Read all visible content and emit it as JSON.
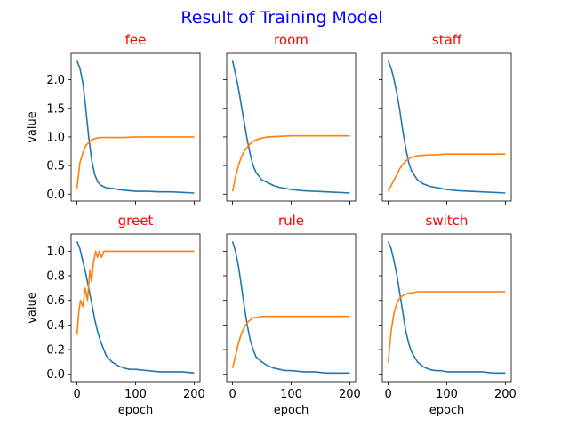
{
  "chart_data": {
    "type": "line",
    "suptitle": "Result of Training Model",
    "xlabel": "epoch",
    "ylabel": "value",
    "xlim": [
      -10,
      210
    ],
    "xticks": [
      0,
      100,
      200
    ],
    "grid": false,
    "colors": {
      "title": "#0000ff",
      "subplot_title": "#ff0000",
      "series_blue": "#1f77b4",
      "series_orange": "#ff7f0e"
    },
    "rows": [
      {
        "ylim": [
          -0.12,
          2.46
        ],
        "yticks": [
          0.0,
          0.5,
          1.0,
          1.5,
          2.0
        ],
        "ytick_labels": [
          "0.0",
          "0.5",
          "1.0",
          "1.5",
          "2.0"
        ],
        "panels": [
          {
            "title": "fee",
            "series": [
              {
                "color": "#1f77b4",
                "x": [
                  0,
                  5,
                  10,
                  15,
                  20,
                  25,
                  30,
                  35,
                  40,
                  50,
                  60,
                  70,
                  80,
                  90,
                  100,
                  120,
                  140,
                  160,
                  180,
                  200
                ],
                "y": [
                  2.33,
                  2.2,
                  1.95,
                  1.5,
                  1.0,
                  0.6,
                  0.35,
                  0.22,
                  0.16,
                  0.11,
                  0.1,
                  0.08,
                  0.07,
                  0.06,
                  0.05,
                  0.05,
                  0.04,
                  0.04,
                  0.03,
                  0.02
                ]
              },
              {
                "color": "#ff7f0e",
                "x": [
                  0,
                  5,
                  10,
                  15,
                  20,
                  25,
                  30,
                  35,
                  40,
                  50,
                  60,
                  80,
                  100,
                  120,
                  140,
                  160,
                  180,
                  200
                ],
                "y": [
                  0.1,
                  0.55,
                  0.72,
                  0.85,
                  0.9,
                  0.95,
                  0.97,
                  0.98,
                  0.99,
                  0.99,
                  0.99,
                  0.99,
                  1.0,
                  1.0,
                  1.0,
                  1.0,
                  1.0,
                  1.0
                ]
              }
            ]
          },
          {
            "title": "room",
            "series": [
              {
                "color": "#1f77b4",
                "x": [
                  0,
                  5,
                  10,
                  15,
                  20,
                  25,
                  30,
                  35,
                  40,
                  50,
                  60,
                  70,
                  80,
                  90,
                  100,
                  120,
                  140,
                  160,
                  180,
                  200
                ],
                "y": [
                  2.33,
                  2.1,
                  1.85,
                  1.55,
                  1.25,
                  0.95,
                  0.7,
                  0.5,
                  0.38,
                  0.25,
                  0.2,
                  0.15,
                  0.12,
                  0.1,
                  0.08,
                  0.06,
                  0.05,
                  0.04,
                  0.03,
                  0.02
                ]
              },
              {
                "color": "#ff7f0e",
                "x": [
                  0,
                  5,
                  10,
                  15,
                  20,
                  25,
                  30,
                  35,
                  40,
                  50,
                  60,
                  80,
                  100,
                  120,
                  140,
                  160,
                  180,
                  200
                ],
                "y": [
                  0.05,
                  0.3,
                  0.5,
                  0.65,
                  0.75,
                  0.82,
                  0.88,
                  0.92,
                  0.95,
                  0.98,
                  1.0,
                  1.01,
                  1.02,
                  1.02,
                  1.02,
                  1.02,
                  1.02,
                  1.02
                ]
              }
            ]
          },
          {
            "title": "staff",
            "series": [
              {
                "color": "#1f77b4",
                "x": [
                  0,
                  5,
                  10,
                  15,
                  20,
                  25,
                  30,
                  35,
                  40,
                  50,
                  60,
                  70,
                  80,
                  90,
                  100,
                  120,
                  140,
                  160,
                  180,
                  200
                ],
                "y": [
                  2.33,
                  2.2,
                  2.0,
                  1.75,
                  1.45,
                  1.1,
                  0.8,
                  0.55,
                  0.4,
                  0.25,
                  0.18,
                  0.14,
                  0.12,
                  0.1,
                  0.08,
                  0.06,
                  0.05,
                  0.04,
                  0.03,
                  0.02
                ]
              },
              {
                "color": "#ff7f0e",
                "x": [
                  0,
                  5,
                  10,
                  15,
                  20,
                  25,
                  30,
                  35,
                  40,
                  50,
                  60,
                  80,
                  100,
                  120,
                  140,
                  160,
                  180,
                  200
                ],
                "y": [
                  0.05,
                  0.15,
                  0.25,
                  0.35,
                  0.45,
                  0.52,
                  0.58,
                  0.62,
                  0.65,
                  0.67,
                  0.68,
                  0.69,
                  0.7,
                  0.7,
                  0.7,
                  0.7,
                  0.7,
                  0.7
                ]
              }
            ]
          }
        ]
      },
      {
        "ylim": [
          -0.06,
          1.14
        ],
        "yticks": [
          0.0,
          0.2,
          0.4,
          0.6,
          0.8,
          1.0
        ],
        "ytick_labels": [
          "0.0",
          "0.2",
          "0.4",
          "0.6",
          "0.8",
          "1.0"
        ],
        "panels": [
          {
            "title": "greet",
            "series": [
              {
                "color": "#1f77b4",
                "x": [
                  0,
                  5,
                  10,
                  15,
                  20,
                  25,
                  30,
                  35,
                  40,
                  50,
                  60,
                  70,
                  80,
                  90,
                  100,
                  120,
                  140,
                  160,
                  180,
                  200
                ],
                "y": [
                  1.08,
                  1.02,
                  0.92,
                  0.82,
                  0.7,
                  0.58,
                  0.45,
                  0.35,
                  0.27,
                  0.15,
                  0.1,
                  0.07,
                  0.05,
                  0.04,
                  0.04,
                  0.03,
                  0.02,
                  0.02,
                  0.02,
                  0.01
                ]
              },
              {
                "color": "#ff7f0e",
                "x": [
                  0,
                  3,
                  6,
                  10,
                  14,
                  18,
                  22,
                  25,
                  28,
                  32,
                  35,
                  38,
                  42,
                  46,
                  50,
                  60,
                  80,
                  100,
                  120,
                  140,
                  160,
                  180,
                  200
                ],
                "y": [
                  0.32,
                  0.5,
                  0.6,
                  0.55,
                  0.7,
                  0.6,
                  0.85,
                  0.75,
                  0.9,
                  1.0,
                  0.95,
                  1.0,
                  0.95,
                  1.0,
                  1.0,
                  1.0,
                  1.0,
                  1.0,
                  1.0,
                  1.0,
                  1.0,
                  1.0,
                  1.0
                ]
              }
            ]
          },
          {
            "title": "rule",
            "series": [
              {
                "color": "#1f77b4",
                "x": [
                  0,
                  5,
                  10,
                  15,
                  20,
                  25,
                  30,
                  35,
                  40,
                  50,
                  60,
                  70,
                  80,
                  90,
                  100,
                  120,
                  140,
                  160,
                  180,
                  200
                ],
                "y": [
                  1.08,
                  1.0,
                  0.88,
                  0.72,
                  0.55,
                  0.4,
                  0.28,
                  0.2,
                  0.14,
                  0.1,
                  0.07,
                  0.05,
                  0.04,
                  0.03,
                  0.03,
                  0.02,
                  0.02,
                  0.01,
                  0.01,
                  0.01
                ]
              },
              {
                "color": "#ff7f0e",
                "x": [
                  0,
                  5,
                  10,
                  15,
                  20,
                  25,
                  30,
                  35,
                  40,
                  50,
                  60,
                  80,
                  100,
                  120,
                  140,
                  160,
                  180,
                  200
                ],
                "y": [
                  0.05,
                  0.15,
                  0.25,
                  0.33,
                  0.38,
                  0.42,
                  0.44,
                  0.46,
                  0.46,
                  0.47,
                  0.47,
                  0.47,
                  0.47,
                  0.47,
                  0.47,
                  0.47,
                  0.47,
                  0.47
                ]
              }
            ]
          },
          {
            "title": "switch",
            "series": [
              {
                "color": "#1f77b4",
                "x": [
                  0,
                  5,
                  10,
                  15,
                  20,
                  25,
                  30,
                  35,
                  40,
                  50,
                  60,
                  70,
                  80,
                  90,
                  100,
                  120,
                  140,
                  160,
                  180,
                  200
                ],
                "y": [
                  1.08,
                  1.02,
                  0.92,
                  0.8,
                  0.65,
                  0.5,
                  0.35,
                  0.25,
                  0.18,
                  0.1,
                  0.06,
                  0.04,
                  0.03,
                  0.03,
                  0.02,
                  0.02,
                  0.02,
                  0.02,
                  0.01,
                  0.01
                ]
              },
              {
                "color": "#ff7f0e",
                "x": [
                  0,
                  5,
                  10,
                  15,
                  20,
                  25,
                  30,
                  35,
                  40,
                  50,
                  60,
                  80,
                  100,
                  120,
                  140,
                  160,
                  180,
                  200
                ],
                "y": [
                  0.1,
                  0.35,
                  0.5,
                  0.58,
                  0.62,
                  0.64,
                  0.65,
                  0.66,
                  0.66,
                  0.67,
                  0.67,
                  0.67,
                  0.67,
                  0.67,
                  0.67,
                  0.67,
                  0.67,
                  0.67
                ]
              }
            ]
          }
        ]
      }
    ]
  }
}
